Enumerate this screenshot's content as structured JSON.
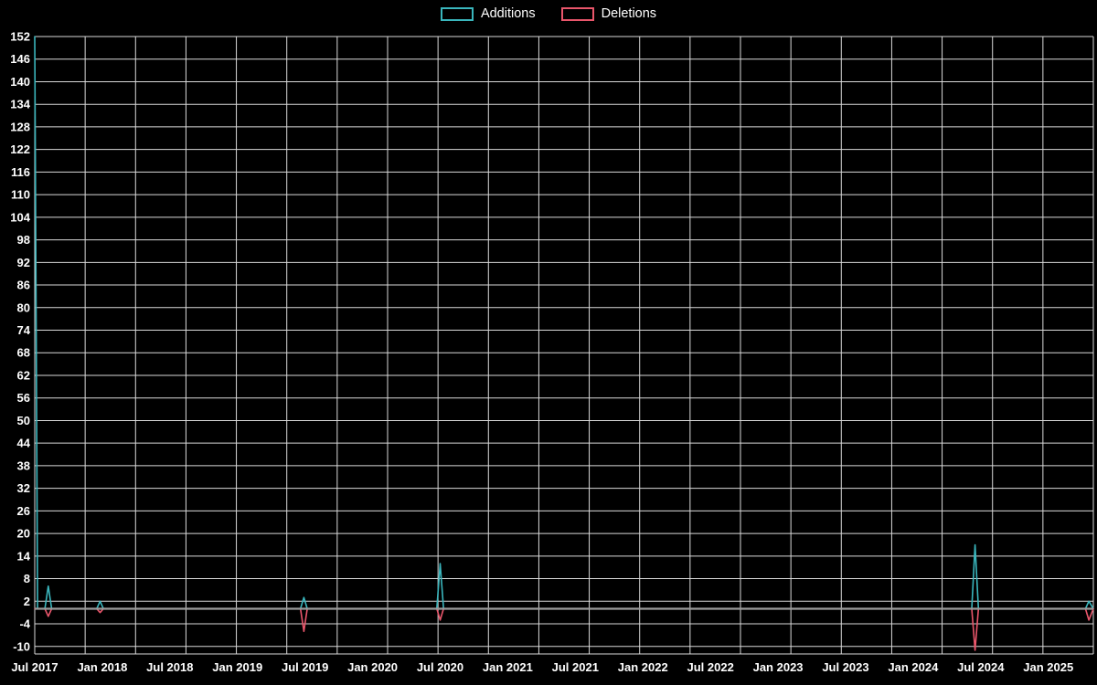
{
  "legend": {
    "items": [
      {
        "label": "Additions",
        "color": "#3ab6bd"
      },
      {
        "label": "Deletions",
        "color": "#e9566b"
      }
    ]
  },
  "chart_data": {
    "type": "line",
    "x_axis": {
      "domain_months": [
        0,
        94
      ],
      "start_label": "Jul 2017",
      "tick_interval_months": 6,
      "tick_labels": [
        "Jul 2017",
        "Jan 2018",
        "Jul 2018",
        "Jan 2019",
        "Jul 2019",
        "Jan 2020",
        "Jul 2020",
        "Jan 2021",
        "Jul 2021",
        "Jan 2022",
        "Jul 2022",
        "Jan 2023",
        "Jul 2023",
        "Jan 2024",
        "Jul 2024",
        "Jan 2025"
      ]
    },
    "y_axis": {
      "domain": [
        -12,
        152
      ],
      "ticks": [
        -10,
        -4,
        2,
        8,
        14,
        20,
        26,
        32,
        38,
        44,
        50,
        56,
        62,
        68,
        74,
        80,
        86,
        92,
        98,
        104,
        110,
        116,
        122,
        128,
        134,
        140,
        146,
        152
      ]
    },
    "grid": {
      "show": true,
      "vertical_divisions": 21,
      "color": "#d9d9d9"
    },
    "zero_line": {
      "value": 0,
      "color": "#9a9a9a"
    },
    "series": [
      {
        "name": "Additions",
        "color": "#3ab6bd",
        "points": [
          [
            0,
            152
          ],
          [
            0.25,
            0
          ],
          [
            0.9,
            0
          ],
          [
            1.2,
            6
          ],
          [
            1.5,
            0
          ],
          [
            5.5,
            0
          ],
          [
            5.8,
            2
          ],
          [
            6.1,
            0
          ],
          [
            23.6,
            0
          ],
          [
            23.9,
            3
          ],
          [
            24.2,
            0
          ],
          [
            35.7,
            0
          ],
          [
            36,
            12
          ],
          [
            36.3,
            0
          ],
          [
            83.2,
            0
          ],
          [
            83.5,
            17
          ],
          [
            83.8,
            0
          ],
          [
            93.3,
            0
          ],
          [
            93.6,
            2
          ],
          [
            94,
            0
          ]
        ]
      },
      {
        "name": "Deletions",
        "color": "#e9566b",
        "points": [
          [
            0,
            0
          ],
          [
            0.9,
            0
          ],
          [
            1.2,
            -2
          ],
          [
            1.5,
            0
          ],
          [
            5.5,
            0
          ],
          [
            5.8,
            -1
          ],
          [
            6.1,
            0
          ],
          [
            23.6,
            0
          ],
          [
            23.9,
            -6
          ],
          [
            24.2,
            0
          ],
          [
            35.7,
            0
          ],
          [
            36,
            -3
          ],
          [
            36.3,
            0
          ],
          [
            83.2,
            0
          ],
          [
            83.5,
            -11
          ],
          [
            83.8,
            0
          ],
          [
            93.3,
            0
          ],
          [
            93.6,
            -3
          ],
          [
            94,
            0
          ]
        ]
      }
    ]
  }
}
